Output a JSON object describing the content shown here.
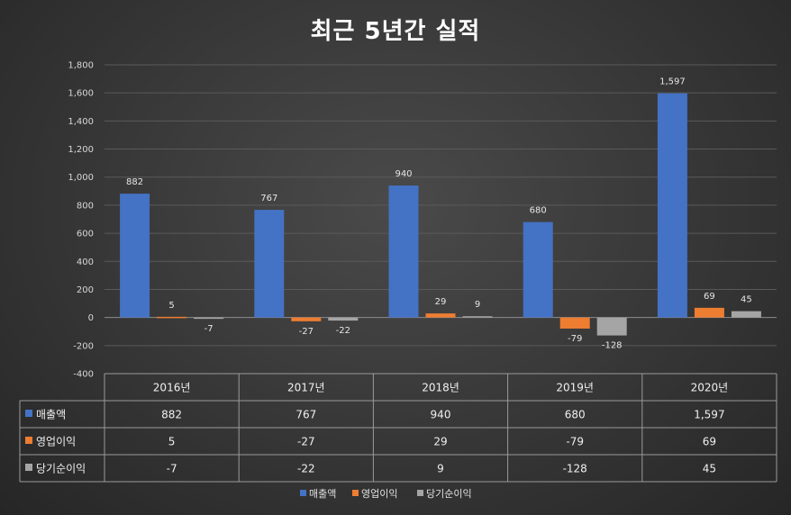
{
  "title": "최근 5년간 실적",
  "colors": {
    "sales": "#4472c4",
    "op_income": "#ed7d31",
    "net_income": "#a5a5a5",
    "grid": "#5a5a5a",
    "axis": "#8c8c8c"
  },
  "chart_data": {
    "type": "bar",
    "title": "최근 5년간 실적",
    "xlabel": "",
    "ylabel": "",
    "ylim": [
      -400,
      1800
    ],
    "yticks": [
      -400,
      -200,
      0,
      200,
      400,
      600,
      800,
      1000,
      1200,
      1400,
      1600,
      1800
    ],
    "ytick_labels": [
      "-400",
      "-200",
      "0",
      "200",
      "400",
      "600",
      "800",
      "1,000",
      "1,200",
      "1,400",
      "1,600",
      "1,800"
    ],
    "grid": true,
    "legend_position": "bottom",
    "categories": [
      "2016년",
      "2017년",
      "2018년",
      "2019년",
      "2020년"
    ],
    "series": [
      {
        "name": "매출액",
        "color_key": "sales",
        "values": [
          882,
          767,
          940,
          680,
          1597
        ],
        "labels": [
          "882",
          "767",
          "940",
          "680",
          "1,597"
        ]
      },
      {
        "name": "영업이익",
        "color_key": "op_income",
        "values": [
          5,
          -27,
          29,
          -79,
          69
        ],
        "labels": [
          "5",
          "-27",
          "29",
          "-79",
          "69"
        ]
      },
      {
        "name": "당기순이익",
        "color_key": "net_income",
        "values": [
          -7,
          -22,
          9,
          -128,
          45
        ],
        "labels": [
          "-7",
          "-22",
          "9",
          "-128",
          "45"
        ]
      }
    ],
    "data_table": true
  }
}
